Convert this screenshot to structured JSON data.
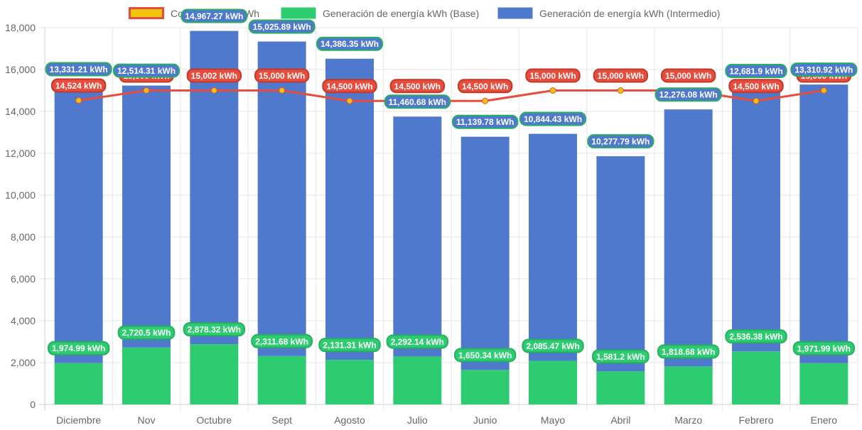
{
  "chart_data": {
    "type": "bar",
    "stacked": true,
    "title": "",
    "xlabel": "",
    "ylabel": "",
    "ylim": [
      0,
      18000
    ],
    "ytick_step": 2000,
    "ytick_labels": [
      "0",
      "2,000",
      "4,000",
      "6,000",
      "8,000",
      "10,000",
      "12,000",
      "14,000",
      "16,000",
      "18,000"
    ],
    "grid": true,
    "legend_position": "top-center",
    "unit": "kWh",
    "categories": [
      "Diciembre",
      "Nov",
      "Octubre",
      "Sept",
      "Agosto",
      "Julio",
      "Junio",
      "Mayo",
      "Abril",
      "Marzo",
      "Febrero",
      "Enero"
    ],
    "series": [
      {
        "name": "Consumo Total kWh",
        "type": "line",
        "color": "#e74c3c",
        "point_color": "#f1c40f",
        "label_border": "#c0392b",
        "values": [
          14524,
          15000,
          15002,
          15000,
          14500,
          14500,
          14500,
          15000,
          15000,
          15000,
          14500,
          15000
        ]
      },
      {
        "name": "Generación de energía kWh (Base)",
        "type": "bar",
        "color": "#2ecc71",
        "label_border": "#27ae60",
        "values": [
          1974.99,
          2720.5,
          2878.32,
          2311.68,
          2131.31,
          2292.14,
          1650.34,
          2085.47,
          1581.2,
          1818.68,
          2536.38,
          1971.99
        ]
      },
      {
        "name": "Generación de energía kWh (Intermedio)",
        "type": "bar",
        "color": "#4e79cc",
        "label_border": "#27ae60",
        "values": [
          13331.21,
          12514.31,
          14967.27,
          15025.89,
          14386.35,
          11460.68,
          11139.78,
          10844.43,
          10277.79,
          12276.08,
          12681.9,
          13310.92
        ]
      }
    ]
  }
}
